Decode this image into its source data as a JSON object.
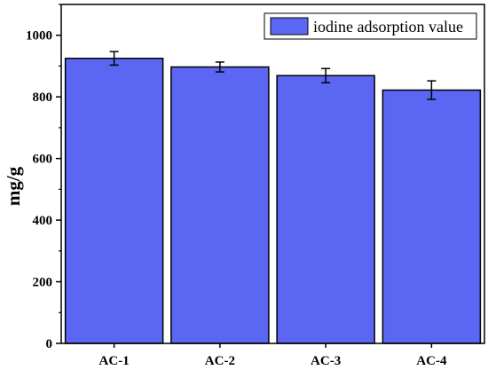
{
  "chart_data": {
    "type": "bar",
    "categories": [
      "AC-1",
      "AC-2",
      "AC-3",
      "AC-4"
    ],
    "series": [
      {
        "name": "iodine adsorption value",
        "values": [
          925,
          897,
          869,
          822
        ],
        "errors": [
          22,
          16,
          23,
          30
        ],
        "color": "#5b67f3"
      }
    ],
    "xlabel": "",
    "ylabel": "mg/g",
    "ylim": [
      0,
      1100
    ],
    "yticks": [
      0,
      200,
      400,
      600,
      800,
      1000
    ],
    "grid": false,
    "legend_position": "top-right",
    "error_bars": true
  }
}
